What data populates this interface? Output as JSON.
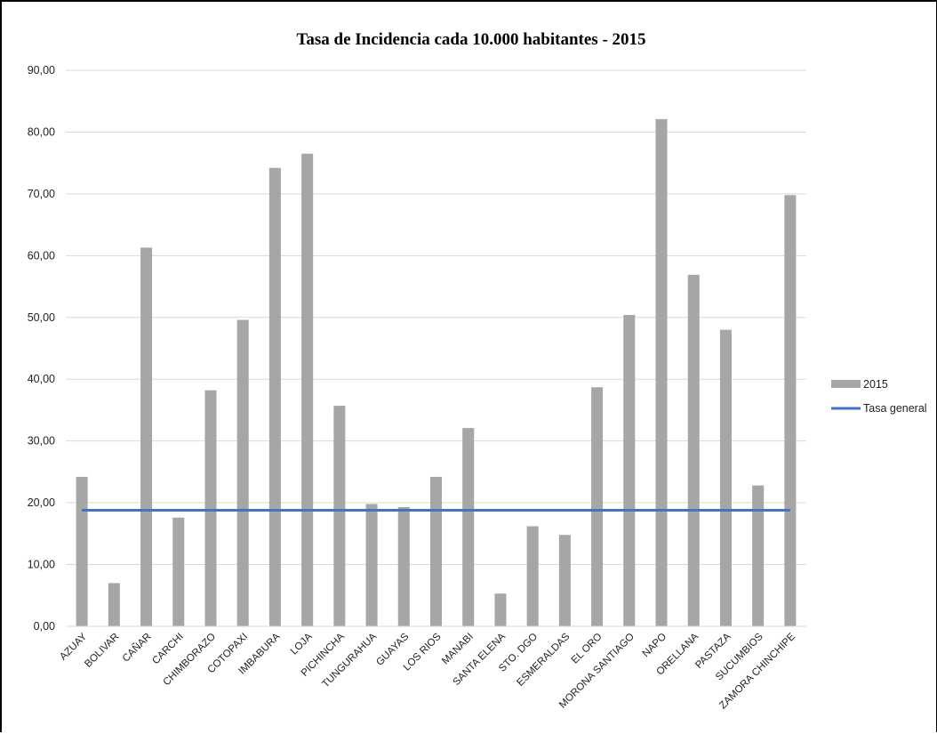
{
  "chart_data": {
    "type": "bar",
    "title": "Tasa de Incidencia cada 10.000 habitantes - 2015",
    "xlabel": "",
    "ylabel": "",
    "ylim": [
      0,
      90
    ],
    "yticks": [
      "0,00",
      "10,00",
      "20,00",
      "30,00",
      "40,00",
      "50,00",
      "60,00",
      "70,00",
      "80,00",
      "90,00"
    ],
    "grid": true,
    "legend_position": "right",
    "categories": [
      "AZUAY",
      "BOLIVAR",
      "CAÑAR",
      "CARCHI",
      "CHIMBORAZO",
      "COTOPAXI",
      "IMBABURA",
      "LOJA",
      "PICHINCHA",
      "TUNGURAHUA",
      "GUAYAS",
      "LOS RIOS",
      "MANABI",
      "SANTA ELENA",
      "STO. DGO",
      "ESMERALDAS",
      "EL ORO",
      "MORONA SANTIAGO",
      "NAPO",
      "ORELLANA",
      "PASTAZA",
      "SUCUMBIOS",
      "ZAMORA CHINCHIPE"
    ],
    "series": [
      {
        "name": "2015",
        "kind": "bar",
        "color": "#a6a6a6",
        "values": [
          24.2,
          7.0,
          61.3,
          17.6,
          38.2,
          49.6,
          74.2,
          76.5,
          35.7,
          19.8,
          19.3,
          24.2,
          32.1,
          5.3,
          16.2,
          14.8,
          38.7,
          50.4,
          82.1,
          56.9,
          48.0,
          22.8,
          69.8
        ]
      },
      {
        "name": "Tasa general",
        "kind": "line",
        "color": "#4472c4",
        "value": 18.8
      }
    ]
  }
}
